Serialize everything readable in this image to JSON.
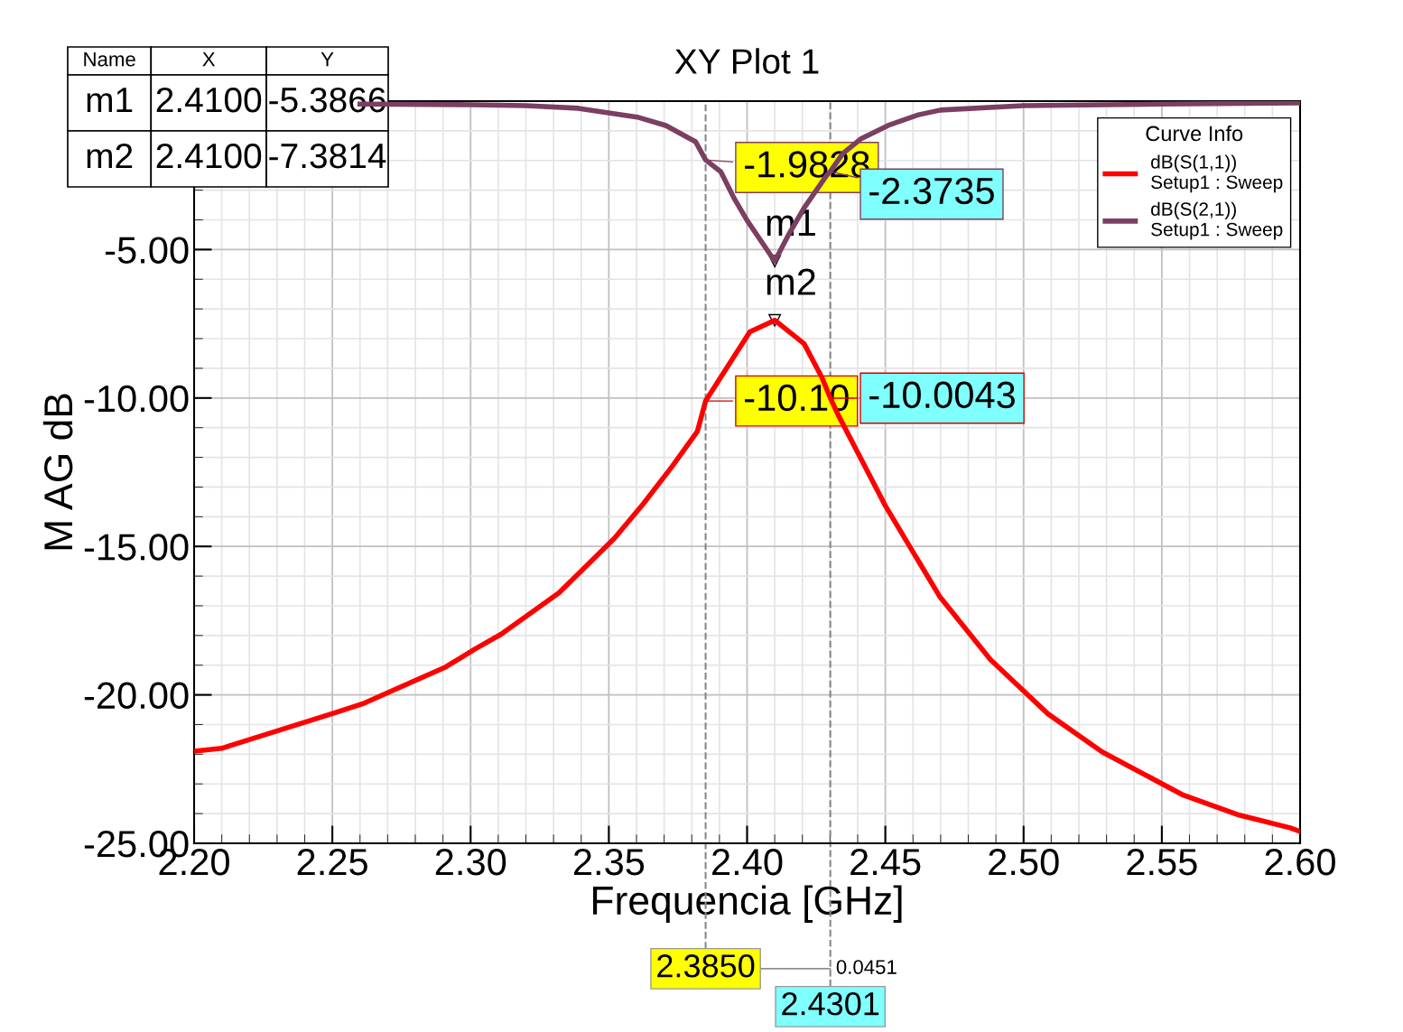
{
  "chart_data": {
    "type": "line",
    "title": "XY Plot 1",
    "xlabel": "Frequencia [GHz]",
    "ylabel": "M AG dB",
    "xlim": [
      2.2,
      2.6
    ],
    "xticks": [
      {
        "value": 2.2,
        "label": "2.20"
      },
      2.25,
      {
        "value": 2.3,
        "label": "2.30"
      },
      2.35,
      {
        "value": 2.4,
        "label": "2.40"
      },
      2.45,
      {
        "value": 2.5,
        "label": "2.50"
      },
      2.55,
      {
        "value": 2.6,
        "label": "2.60"
      }
    ],
    "ylim": [
      -25,
      0
    ],
    "yticks": [
      {
        "value": -25,
        "label": "-25.00"
      },
      {
        "value": -20,
        "label": "-20.00"
      },
      {
        "value": -15,
        "label": "-15.00"
      },
      {
        "value": -10,
        "label": "-10.00"
      },
      {
        "value": -5,
        "label": "-5.00"
      }
    ],
    "grid": true,
    "legend": "top right",
    "legend_title": "Curve Info",
    "line_style": "solid",
    "marker": "none",
    "series": [
      {
        "name": "dB(S(1,1))\nSetup1 : Sweep",
        "color": "#ff0000",
        "x": [
          2.2,
          2.21,
          2.251,
          2.261,
          2.291,
          2.3017,
          2.311,
          2.332,
          2.352,
          2.3624,
          2.373,
          2.382,
          2.385,
          2.401,
          2.41,
          2.4206,
          2.427,
          2.4301,
          2.433,
          2.45,
          2.4696,
          2.488,
          2.5088,
          2.5284,
          2.5578,
          2.578,
          2.5964,
          2.6
        ],
        "values": [
          -21.9,
          -21.8,
          -20.6,
          -20.3,
          -19.06,
          -18.45,
          -17.96,
          -16.56,
          -14.73,
          -13.57,
          -12.29,
          -11.13,
          -10.1,
          -7.77,
          -7.38,
          -8.17,
          -9.3,
          -10.0,
          -10.58,
          -13.63,
          -16.68,
          -18.81,
          -20.64,
          -21.92,
          -23.38,
          -24.05,
          -24.48,
          -24.6
        ]
      },
      {
        "name": "dB(S(2,1))\nSetup1 : Sweep",
        "color": "#7b3f61",
        "x": [
          2.26,
          2.3,
          2.32,
          2.3389,
          2.3608,
          2.3706,
          2.3814,
          2.385,
          2.3905,
          2.3954,
          2.4,
          2.41,
          2.415,
          2.4206,
          2.4288,
          2.4301,
          2.4346,
          2.441,
          2.451,
          2.462,
          2.47,
          2.5,
          2.55,
          2.6
        ],
        "values": [
          -0.1,
          -0.12,
          -0.15,
          -0.24,
          -0.55,
          -0.82,
          -1.37,
          -1.98,
          -2.38,
          -3.29,
          -4.02,
          -5.39,
          -4.5,
          -3.6,
          -2.5,
          -2.37,
          -1.77,
          -1.28,
          -0.82,
          -0.46,
          -0.3,
          -0.15,
          -0.1,
          -0.06
        ]
      }
    ],
    "ref_lines": [
      {
        "axis": "x",
        "value": 2.385,
        "label": "2.3850",
        "color": "#888888",
        "line_style": "dashed"
      },
      {
        "axis": "x",
        "value": 2.4301,
        "label": "2.4301",
        "color": "#888888",
        "line_style": "dashed"
      }
    ],
    "annotations": [
      "Name",
      "X",
      "Y",
      "m1",
      "2.4100",
      "-5.3866",
      "m2",
      "2.4100",
      "-7.3814",
      {
        "text": "m1",
        "x": 2.41,
        "y": -5.3866
      },
      {
        "text": "m2",
        "x": 2.41,
        "y": -7.3814
      },
      {
        "text": "-1.9828",
        "x": 2.385,
        "y": -1.9828
      },
      {
        "text": "-2.3735",
        "x": 2.4301,
        "y": -2.3735
      },
      {
        "text": "-10.10",
        "x": 2.385,
        "y": -10.1
      },
      {
        "text": "-10.0043",
        "x": 2.4301,
        "y": -10.0043
      },
      "0.0451"
    ]
  }
}
